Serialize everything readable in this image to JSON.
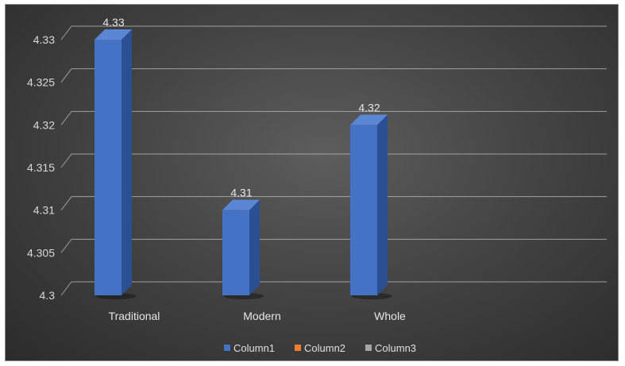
{
  "chart_data": {
    "type": "bar",
    "title": "",
    "xlabel": "",
    "ylabel": "",
    "categories": [
      "Traditional",
      "Modern",
      "Whole"
    ],
    "series": [
      {
        "name": "Column1",
        "values": [
          4.33,
          4.31,
          4.32
        ],
        "color": "#4472c4"
      },
      {
        "name": "Column2",
        "values": [
          null,
          null,
          null
        ],
        "color": "#ed7d31"
      },
      {
        "name": "Column3",
        "values": [
          null,
          null,
          null
        ],
        "color": "#a5a5a5"
      }
    ],
    "data_labels": [
      "4.33",
      "4.31",
      "4.32"
    ],
    "yticks": [
      "4.3",
      "4.305",
      "4.31",
      "4.315",
      "4.32",
      "4.325",
      "4.33"
    ],
    "ylim": [
      4.3,
      4.33
    ],
    "grid": true,
    "legend_position": "bottom",
    "style": "3d-column",
    "colors": {
      "background": "#3f3f3f",
      "grid": "#bfbfbf",
      "bar": "#4472c4"
    }
  }
}
